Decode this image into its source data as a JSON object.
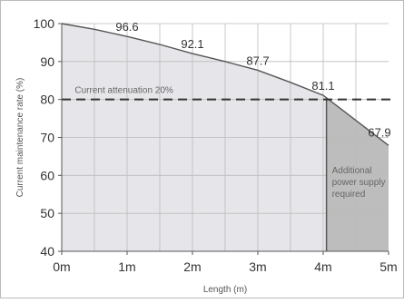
{
  "chart_data": {
    "type": "area",
    "x": [
      0,
      0.5,
      1,
      1.5,
      2,
      2.5,
      3,
      3.5,
      4,
      4.5,
      5
    ],
    "x_tick_labels": [
      "0m",
      "1m",
      "2m",
      "3m",
      "4m",
      "5m"
    ],
    "x_tick_values": [
      0,
      1,
      2,
      3,
      4,
      5
    ],
    "y": [
      100,
      98.5,
      96.6,
      94.5,
      92.1,
      90.0,
      87.7,
      84.5,
      81.1,
      74.5,
      67.9
    ],
    "y_ticks": [
      40,
      50,
      60,
      70,
      80,
      90,
      100
    ],
    "xlim": [
      0,
      5
    ],
    "ylim": [
      40,
      100
    ],
    "xlabel": "Length (m)",
    "ylabel": "Current maintenance rate (%)",
    "grid": true,
    "data_labels": [
      {
        "x": 1,
        "y": 96.6,
        "text": "96.6"
      },
      {
        "x": 2,
        "y": 92.1,
        "text": "92.1"
      },
      {
        "x": 3,
        "y": 87.7,
        "text": "87.7"
      },
      {
        "x": 4,
        "y": 81.1,
        "text": "81.1"
      },
      {
        "x": 5,
        "y": 67.9,
        "text": "67.9"
      }
    ],
    "threshold": {
      "y": 80,
      "label": "Current attenuation 20%"
    },
    "additional_region": {
      "x_start": 4.05,
      "lines": [
        "Additional",
        "power supply",
        "required"
      ]
    },
    "colors": {
      "fill": "#e6e6ea",
      "shaded_fill": "#bdbdbd",
      "line": "#555555",
      "grid": "#bbbbbb",
      "threshold": "#333333"
    }
  }
}
